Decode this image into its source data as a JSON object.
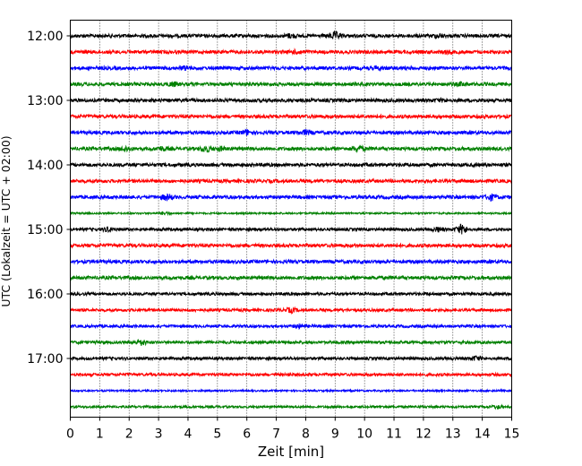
{
  "chart_data": {
    "type": "line",
    "xlabel": "Zeit  [min]",
    "ylabel": "UTC (Lokalzeit = UTC + 02:00)",
    "xlim": [
      0,
      15
    ],
    "xticks": [
      0,
      1,
      2,
      3,
      4,
      5,
      6,
      7,
      8,
      9,
      10,
      11,
      12,
      13,
      14,
      15
    ],
    "x_grid": true,
    "time_labels": [
      {
        "label": "12:00",
        "row": 0
      },
      {
        "label": "13:00",
        "row": 4
      },
      {
        "label": "14:00",
        "row": 8
      },
      {
        "label": "15:00",
        "row": 12
      },
      {
        "label": "16:00",
        "row": 16
      },
      {
        "label": "17:00",
        "row": 20
      }
    ],
    "trace_colors": [
      "#000000",
      "#ff0000",
      "#0000ff",
      "#008000"
    ],
    "traces": [
      {
        "start": "12:00",
        "color": "#000000",
        "amplitude": 0.6,
        "bursts": [
          [
            9.0,
            1.0
          ],
          [
            7.5,
            0.5
          ],
          [
            12.5,
            0.5
          ]
        ]
      },
      {
        "start": "12:15",
        "color": "#ff0000",
        "amplitude": 0.6,
        "bursts": [
          [
            7.7,
            0.4
          ],
          [
            12.8,
            0.4
          ]
        ]
      },
      {
        "start": "12:30",
        "color": "#0000ff",
        "amplitude": 0.6,
        "bursts": [
          [
            3.9,
            0.4
          ],
          [
            10.5,
            0.3
          ]
        ]
      },
      {
        "start": "12:45",
        "color": "#008000",
        "amplitude": 0.6,
        "bursts": [
          [
            3.5,
            0.5
          ],
          [
            13.3,
            0.4
          ]
        ]
      },
      {
        "start": "13:00",
        "color": "#000000",
        "amplitude": 0.6,
        "bursts": [
          [
            12.6,
            0.3
          ]
        ]
      },
      {
        "start": "13:15",
        "color": "#ff0000",
        "amplitude": 0.6,
        "bursts": []
      },
      {
        "start": "13:30",
        "color": "#0000ff",
        "amplitude": 0.6,
        "bursts": [
          [
            6.0,
            0.7
          ],
          [
            8.0,
            0.6
          ]
        ]
      },
      {
        "start": "13:45",
        "color": "#008000",
        "amplitude": 0.6,
        "bursts": [
          [
            1.9,
            0.6
          ],
          [
            3.1,
            0.5
          ],
          [
            4.6,
            0.8
          ],
          [
            5.1,
            0.5
          ],
          [
            9.8,
            0.8
          ]
        ]
      },
      {
        "start": "14:00",
        "color": "#000000",
        "amplitude": 0.6,
        "bursts": []
      },
      {
        "start": "14:15",
        "color": "#ff0000",
        "amplitude": 0.6,
        "bursts": []
      },
      {
        "start": "14:30",
        "color": "#0000ff",
        "amplitude": 0.6,
        "bursts": [
          [
            3.3,
            0.8
          ],
          [
            14.3,
            0.8
          ]
        ]
      },
      {
        "start": "14:45",
        "color": "#008000",
        "amplitude": 0.3,
        "bursts": [
          [
            3.2,
            0.4
          ]
        ]
      },
      {
        "start": "15:00",
        "color": "#000000",
        "amplitude": 0.5,
        "bursts": [
          [
            1.3,
            0.6
          ],
          [
            12.5,
            0.6
          ],
          [
            13.3,
            1.4
          ]
        ]
      },
      {
        "start": "15:15",
        "color": "#ff0000",
        "amplitude": 0.6,
        "bursts": []
      },
      {
        "start": "15:30",
        "color": "#0000ff",
        "amplitude": 0.6,
        "bursts": []
      },
      {
        "start": "15:45",
        "color": "#008000",
        "amplitude": 0.6,
        "bursts": []
      },
      {
        "start": "16:00",
        "color": "#000000",
        "amplitude": 0.5,
        "bursts": []
      },
      {
        "start": "16:15",
        "color": "#ff0000",
        "amplitude": 0.5,
        "bursts": [
          [
            7.5,
            0.6
          ]
        ]
      },
      {
        "start": "16:30",
        "color": "#0000ff",
        "amplitude": 0.5,
        "bursts": [
          [
            7.8,
            0.5
          ]
        ]
      },
      {
        "start": "16:45",
        "color": "#008000",
        "amplitude": 0.5,
        "bursts": [
          [
            2.4,
            0.8
          ]
        ]
      },
      {
        "start": "17:00",
        "color": "#000000",
        "amplitude": 0.5,
        "bursts": [
          [
            13.8,
            0.6
          ]
        ]
      },
      {
        "start": "17:15",
        "color": "#ff0000",
        "amplitude": 0.5,
        "bursts": []
      },
      {
        "start": "17:30",
        "color": "#0000ff",
        "amplitude": 0.3,
        "bursts": []
      },
      {
        "start": "17:45",
        "color": "#008000",
        "amplitude": 0.4,
        "bursts": [
          [
            14.5,
            0.4
          ]
        ]
      }
    ]
  }
}
